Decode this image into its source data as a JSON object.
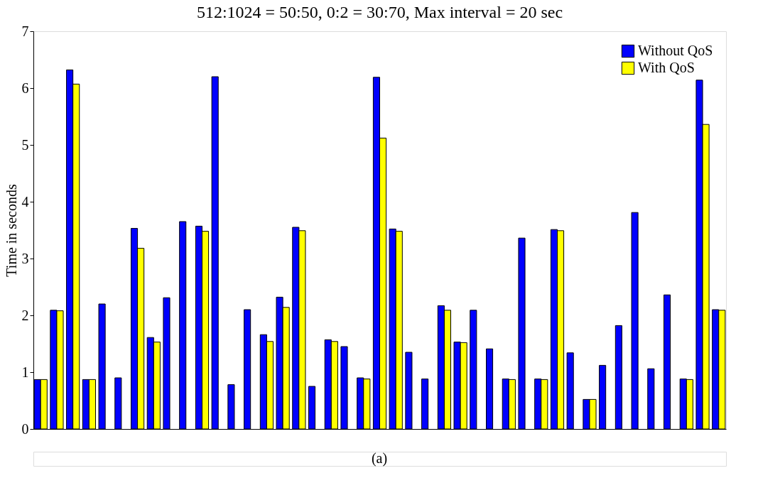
{
  "chart_data": {
    "type": "bar",
    "title": "512:1024 = 50:50, 0:2 = 30:70, Max interval = 20 sec",
    "ylabel": "Time in seconds",
    "categories": [
      null,
      null,
      null,
      null,
      null,
      null,
      null,
      null,
      null,
      null,
      null,
      null,
      null,
      null,
      null,
      null,
      null,
      null,
      null,
      null,
      null,
      null,
      null,
      null,
      null,
      null,
      null,
      null,
      null,
      null,
      null,
      null,
      null,
      null,
      null,
      null,
      null,
      null,
      null,
      null,
      null,
      null,
      null
    ],
    "series": [
      {
        "name": "Without QoS",
        "color": "#0000ff",
        "values": [
          0.87,
          2.09,
          6.32,
          0.87,
          2.2,
          0.9,
          3.53,
          1.61,
          2.31,
          3.65,
          3.57,
          6.2,
          0.78,
          2.1,
          1.66,
          2.32,
          3.55,
          0.75,
          1.57,
          1.45,
          0.9,
          6.19,
          3.52,
          1.35,
          0.88,
          2.17,
          1.53,
          2.09,
          1.41,
          0.88,
          3.36,
          0.88,
          3.51,
          1.34,
          0.52,
          1.12,
          1.82,
          3.81,
          1.06,
          2.36,
          0.88,
          6.14,
          2.1
        ]
      },
      {
        "name": "With QoS",
        "color": "#ffff00",
        "values": [
          0.87,
          2.08,
          6.07,
          0.87,
          null,
          null,
          3.18,
          1.53,
          null,
          null,
          3.48,
          null,
          null,
          null,
          1.54,
          2.14,
          3.49,
          null,
          1.54,
          null,
          0.88,
          5.12,
          3.48,
          null,
          null,
          2.09,
          1.52,
          null,
          null,
          0.87,
          null,
          0.87,
          3.49,
          null,
          0.52,
          null,
          null,
          null,
          null,
          null,
          0.87,
          5.36,
          2.09
        ]
      }
    ],
    "ylim": [
      0,
      7
    ],
    "yticks": [
      0,
      1,
      2,
      3,
      4,
      5,
      6,
      7
    ],
    "grid": false,
    "legend": "top right",
    "tick_labels": "y",
    "annotations": [
      "(a)"
    ]
  }
}
